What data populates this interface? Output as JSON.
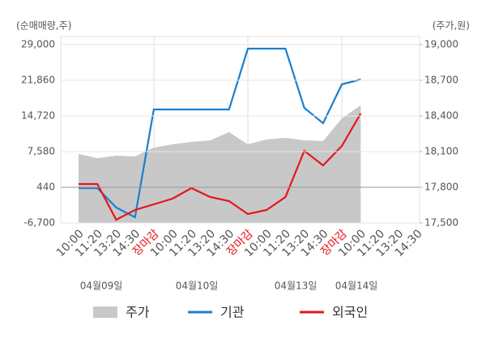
{
  "chart_data": {
    "type": "line",
    "y_axis_label": "(순매매량,주)",
    "y2_axis_label": "(주가,원)",
    "categories": [
      "10:00",
      "11:20",
      "13:20",
      "14:30",
      "장마감",
      "10:00",
      "11:20",
      "13:20",
      "14:30",
      "장마감",
      "10:00",
      "11:20",
      "13:20",
      "14:30",
      "장마감",
      "10:00",
      "11:20",
      "13:20",
      "14:30"
    ],
    "dates": [
      "04월09일",
      "04월10일",
      "04월13일",
      "04월14일"
    ],
    "ylim": [
      -6700,
      29000
    ],
    "yticks": [
      {
        "value": -6700,
        "label": "-6,700"
      },
      440,
      {
        "value": 7580,
        "label": "7,580"
      },
      {
        "value": 14720,
        "label": "14,720"
      },
      {
        "value": 21860,
        "label": "21,860"
      },
      {
        "value": 29000,
        "label": "29,000"
      }
    ],
    "y2lim": [
      17500,
      19000
    ],
    "y2ticks": [
      {
        "value": 17500,
        "label": "17,500"
      },
      {
        "value": 17800,
        "label": "17,800"
      },
      {
        "value": 18100,
        "label": "18,100"
      },
      {
        "value": 18400,
        "label": "18,400"
      },
      {
        "value": 18700,
        "label": "18,700"
      },
      {
        "value": 19000,
        "label": "19,000"
      }
    ],
    "grid": true,
    "series": [
      {
        "name": "주가",
        "type": "area",
        "axis": "y2",
        "color": "#c8c8c8",
        "values": [
          18080,
          18045,
          18066,
          18059,
          18134,
          18161,
          18182,
          18195,
          18264,
          18161,
          18202,
          18216,
          18195,
          18189,
          18380,
          18489,
          null,
          null,
          null
        ]
      },
      {
        "name": "기관",
        "color": "#1a7fd0",
        "values": [
          277,
          277,
          -3616,
          -5563,
          16018,
          16018,
          16018,
          16018,
          16018,
          28189,
          28189,
          28189,
          16343,
          13260,
          21049,
          22022,
          null,
          null,
          null
        ]
      },
      {
        "name": "외국인",
        "color": "#e8141c",
        "values": [
          1089,
          1089,
          -6051,
          -4103,
          -2967,
          -1831,
          277,
          -1507,
          -2318,
          -4915,
          -4103,
          -1507,
          7743,
          4822,
          8716,
          15207,
          null,
          null,
          null
        ]
      }
    ]
  }
}
